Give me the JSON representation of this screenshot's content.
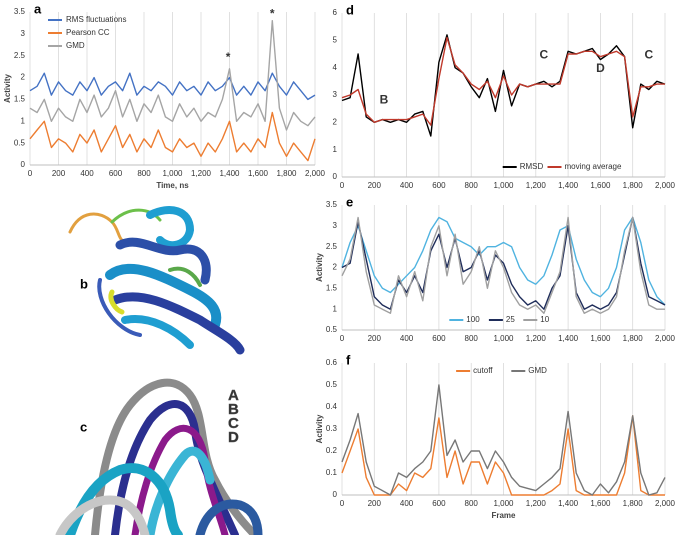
{
  "chart_data": [
    {
      "label": "a",
      "type": "line",
      "x_label": "Time, ns",
      "y_label": "Activity",
      "x": [
        0,
        50,
        100,
        150,
        200,
        250,
        300,
        350,
        400,
        450,
        500,
        550,
        600,
        650,
        700,
        750,
        800,
        850,
        900,
        950,
        1000,
        1050,
        1100,
        1150,
        1200,
        1250,
        1300,
        1350,
        1400,
        1450,
        1500,
        1550,
        1600,
        1650,
        1700,
        1750,
        1800,
        1850,
        1900,
        1950,
        2000
      ],
      "series": [
        {
          "name": "RMS fluctuations",
          "color": "#4472c4",
          "values": [
            1.7,
            1.8,
            2.1,
            1.6,
            1.9,
            1.7,
            1.6,
            1.9,
            1.7,
            2.0,
            1.6,
            1.8,
            1.9,
            1.7,
            2.1,
            1.6,
            1.8,
            1.7,
            1.9,
            1.8,
            1.6,
            1.9,
            1.7,
            1.8,
            1.6,
            1.9,
            1.7,
            1.8,
            2.0,
            1.6,
            1.8,
            1.6,
            1.9,
            1.7,
            2.1,
            1.8,
            1.6,
            1.9,
            1.7,
            1.5,
            1.6
          ]
        },
        {
          "name": "Pearson CC",
          "color": "#ed7d31",
          "values": [
            0.6,
            0.8,
            1.0,
            0.4,
            0.6,
            0.5,
            0.3,
            0.7,
            0.5,
            0.8,
            0.3,
            0.6,
            0.9,
            0.4,
            0.7,
            0.3,
            0.6,
            0.4,
            0.8,
            0.4,
            0.3,
            0.6,
            0.4,
            0.5,
            0.2,
            0.5,
            0.3,
            0.6,
            1.0,
            0.3,
            0.5,
            0.3,
            0.6,
            0.4,
            1.2,
            0.5,
            0.2,
            0.5,
            0.3,
            0.1,
            0.6
          ]
        },
        {
          "name": "GMD",
          "color": "#a5a5a5",
          "values": [
            1.3,
            1.2,
            1.5,
            1.0,
            1.3,
            1.1,
            1.0,
            1.5,
            1.2,
            1.6,
            1.1,
            1.3,
            1.7,
            1.1,
            1.5,
            1.0,
            1.4,
            1.2,
            1.6,
            1.1,
            1.0,
            1.4,
            1.1,
            1.3,
            1.0,
            1.2,
            1.1,
            1.5,
            2.2,
            1.0,
            1.2,
            1.1,
            1.4,
            1.0,
            3.3,
            1.3,
            0.8,
            1.2,
            1.0,
            0.9,
            1.1
          ]
        }
      ],
      "annotations": [
        {
          "text": "*",
          "x": 1390,
          "y": 2.45
        },
        {
          "text": "*",
          "x": 1700,
          "y": 3.45
        }
      ],
      "xlim": [
        0,
        2000
      ],
      "xticks": [
        0,
        200,
        400,
        600,
        800,
        {
          "value": 1000,
          "label": "1,000"
        },
        {
          "value": 1200,
          "label": "1,200"
        },
        {
          "value": 1400,
          "label": "1,400"
        },
        {
          "value": 1600,
          "label": "1,600"
        },
        {
          "value": 1800,
          "label": "1,800"
        },
        {
          "value": 2000,
          "label": "2,000"
        }
      ],
      "ylim": [
        0,
        3.5
      ],
      "yticks": [
        0,
        0.5,
        1,
        1.5,
        2,
        2.5,
        3,
        3.5
      ],
      "grid": true,
      "legend": "upper left"
    },
    {
      "label": "d",
      "type": "line",
      "x": [
        0,
        50,
        100,
        150,
        200,
        250,
        300,
        350,
        400,
        450,
        500,
        550,
        600,
        650,
        700,
        750,
        800,
        850,
        900,
        950,
        1000,
        1050,
        1100,
        1150,
        1200,
        1250,
        1300,
        1350,
        1400,
        1450,
        1500,
        1550,
        1600,
        1650,
        1700,
        1750,
        1800,
        1850,
        1900,
        1950,
        2000
      ],
      "series": [
        {
          "name": "RMSD",
          "color": "#000000",
          "values": [
            2.8,
            2.9,
            4.5,
            2.2,
            2.0,
            2.1,
            2.0,
            2.1,
            2.0,
            2.3,
            2.4,
            1.5,
            4.2,
            5.2,
            4.0,
            3.8,
            3.3,
            2.9,
            3.6,
            2.4,
            3.9,
            2.6,
            3.4,
            3.3,
            3.4,
            3.5,
            3.3,
            3.5,
            4.6,
            4.5,
            4.6,
            4.7,
            4.3,
            4.5,
            4.8,
            4.4,
            1.8,
            3.4,
            3.2,
            3.5,
            3.4
          ]
        },
        {
          "name": "moving average",
          "color": "#c0392b",
          "values": [
            2.9,
            3.0,
            3.2,
            2.3,
            2.0,
            2.1,
            2.1,
            2.1,
            2.1,
            2.2,
            2.3,
            1.9,
            3.6,
            5.1,
            4.1,
            3.8,
            3.4,
            3.2,
            3.5,
            2.9,
            3.7,
            3.0,
            3.4,
            3.3,
            3.4,
            3.4,
            3.4,
            3.4,
            4.5,
            4.5,
            4.6,
            4.6,
            4.4,
            4.5,
            4.6,
            4.4,
            2.2,
            3.3,
            3.3,
            3.4,
            3.4
          ]
        }
      ],
      "annotations": [
        {
          "text": "B",
          "x": 260,
          "y": 2.8
        },
        {
          "text": "C",
          "x": 1250,
          "y": 4.45
        },
        {
          "text": "D",
          "x": 1600,
          "y": 3.95
        },
        {
          "text": "C",
          "x": 1900,
          "y": 4.45
        }
      ],
      "xlim": [
        0,
        2000
      ],
      "xticks": [
        0,
        200,
        400,
        600,
        800,
        {
          "value": 1000,
          "label": "1,000"
        },
        {
          "value": 1200,
          "label": "1,200"
        },
        {
          "value": 1400,
          "label": "1,400"
        },
        {
          "value": 1600,
          "label": "1,600"
        },
        {
          "value": 1800,
          "label": "1,800"
        },
        {
          "value": 2000,
          "label": "2,000"
        }
      ],
      "ylim": [
        0,
        6
      ],
      "yticks": [
        0,
        1,
        2,
        3,
        4,
        5,
        6
      ],
      "grid": true,
      "legend": "lower center"
    },
    {
      "label": "e",
      "type": "line",
      "y_label": "Activity",
      "x": [
        0,
        50,
        100,
        150,
        200,
        250,
        300,
        350,
        400,
        450,
        500,
        550,
        600,
        650,
        700,
        750,
        800,
        850,
        900,
        950,
        1000,
        1050,
        1100,
        1150,
        1200,
        1250,
        1300,
        1350,
        1400,
        1450,
        1500,
        1550,
        1600,
        1650,
        1700,
        1750,
        1800,
        1850,
        1900,
        1950,
        2000
      ],
      "series": [
        {
          "name": "100",
          "color": "#4fb3e0",
          "values": [
            2.0,
            2.6,
            3.0,
            2.4,
            1.8,
            1.5,
            1.4,
            1.6,
            1.8,
            2.0,
            2.4,
            2.9,
            3.2,
            3.1,
            2.7,
            2.6,
            2.5,
            2.3,
            2.5,
            2.5,
            2.6,
            2.5,
            2.0,
            1.7,
            1.6,
            1.8,
            2.3,
            2.9,
            3.0,
            2.2,
            1.7,
            1.4,
            1.3,
            1.5,
            2.0,
            2.9,
            3.2,
            2.6,
            1.7,
            1.3,
            1.1
          ]
        },
        {
          "name": "25",
          "color": "#1f2d5a",
          "values": [
            2.0,
            2.1,
            3.1,
            2.2,
            1.3,
            1.1,
            1.0,
            1.7,
            1.4,
            1.8,
            1.4,
            2.4,
            2.8,
            2.0,
            2.7,
            1.9,
            2.0,
            2.4,
            1.7,
            2.3,
            2.1,
            1.6,
            1.3,
            1.1,
            1.2,
            1.0,
            1.5,
            1.8,
            3.0,
            1.4,
            1.0,
            1.1,
            1.0,
            1.1,
            1.4,
            2.3,
            3.2,
            2.1,
            1.3,
            1.2,
            1.1
          ]
        },
        {
          "name": "10",
          "color": "#a0a0a0",
          "values": [
            1.8,
            2.2,
            3.2,
            1.9,
            1.1,
            1.0,
            0.9,
            1.8,
            1.3,
            1.9,
            1.2,
            2.5,
            3.0,
            1.8,
            2.8,
            1.6,
            1.9,
            2.5,
            1.5,
            2.4,
            2.0,
            1.4,
            1.1,
            1.0,
            1.1,
            0.9,
            1.4,
            1.9,
            3.2,
            1.3,
            0.9,
            1.0,
            0.9,
            1.0,
            1.3,
            2.4,
            3.2,
            1.9,
            1.1,
            1.0,
            1.0
          ]
        }
      ],
      "xlim": [
        0,
        2000
      ],
      "xticks": [
        0,
        200,
        400,
        600,
        800,
        {
          "value": 1000,
          "label": "1,000"
        },
        {
          "value": 1200,
          "label": "1,200"
        },
        {
          "value": 1400,
          "label": "1,400"
        },
        {
          "value": 1600,
          "label": "1,600"
        },
        {
          "value": 1800,
          "label": "1,800"
        },
        {
          "value": 2000,
          "label": "2,000"
        }
      ],
      "ylim": [
        0.5,
        3.5
      ],
      "yticks": [
        0.5,
        1,
        1.5,
        2,
        2.5,
        3,
        3.5
      ],
      "grid": true,
      "legend": "lower center"
    },
    {
      "label": "f",
      "type": "line",
      "x_label": "Frame",
      "y_label": "Activity",
      "x": [
        0,
        50,
        100,
        150,
        200,
        250,
        300,
        350,
        400,
        450,
        500,
        550,
        600,
        650,
        700,
        750,
        800,
        850,
        900,
        950,
        1000,
        1050,
        1100,
        1150,
        1200,
        1250,
        1300,
        1350,
        1400,
        1450,
        1500,
        1550,
        1600,
        1650,
        1700,
        1750,
        1800,
        1850,
        1900,
        1950,
        2000
      ],
      "series": [
        {
          "name": "cutoff",
          "color": "#ed7d31",
          "values": [
            0.1,
            0.2,
            0.3,
            0.08,
            0.0,
            0.0,
            0.0,
            0.05,
            0.02,
            0.1,
            0.08,
            0.12,
            0.35,
            0.08,
            0.2,
            0.05,
            0.15,
            0.15,
            0.05,
            0.15,
            0.1,
            0.0,
            0.0,
            0.0,
            0.0,
            0.0,
            0.02,
            0.05,
            0.3,
            0.02,
            0.0,
            0.0,
            0.0,
            0.0,
            0.0,
            0.1,
            0.36,
            0.02,
            0.0,
            0.0,
            0.0
          ]
        },
        {
          "name": "GMD",
          "color": "#777777",
          "values": [
            0.15,
            0.25,
            0.37,
            0.15,
            0.04,
            0.02,
            0.0,
            0.1,
            0.08,
            0.12,
            0.15,
            0.2,
            0.5,
            0.18,
            0.25,
            0.15,
            0.2,
            0.2,
            0.12,
            0.2,
            0.15,
            0.08,
            0.04,
            0.03,
            0.02,
            0.05,
            0.08,
            0.12,
            0.38,
            0.1,
            0.02,
            0.0,
            0.05,
            0.01,
            0.06,
            0.15,
            0.36,
            0.1,
            0.0,
            0.01,
            0.08
          ]
        }
      ],
      "xlim": [
        0,
        2000
      ],
      "xticks": [
        0,
        200,
        400,
        600,
        800,
        {
          "value": 1000,
          "label": "1,000"
        },
        {
          "value": 1200,
          "label": "1,200"
        },
        {
          "value": 1400,
          "label": "1,400"
        },
        {
          "value": 1600,
          "label": "1,600"
        },
        {
          "value": 1800,
          "label": "1,800"
        },
        {
          "value": 2000,
          "label": "2,000"
        }
      ],
      "ylim": [
        0,
        0.6
      ],
      "yticks": [
        0,
        0.1,
        0.2,
        0.3,
        0.4,
        0.5,
        0.6
      ],
      "grid": true,
      "legend": "upper center"
    }
  ],
  "structures": [
    {
      "label": "b"
    },
    {
      "label": "c",
      "states": [
        {
          "name": "A",
          "color": "#2b2f8f"
        },
        {
          "name": "B",
          "color": "#5bc0de"
        },
        {
          "name": "C",
          "color": "#8b1a8b"
        },
        {
          "name": "D",
          "color": "#d8d8d8"
        }
      ]
    }
  ]
}
